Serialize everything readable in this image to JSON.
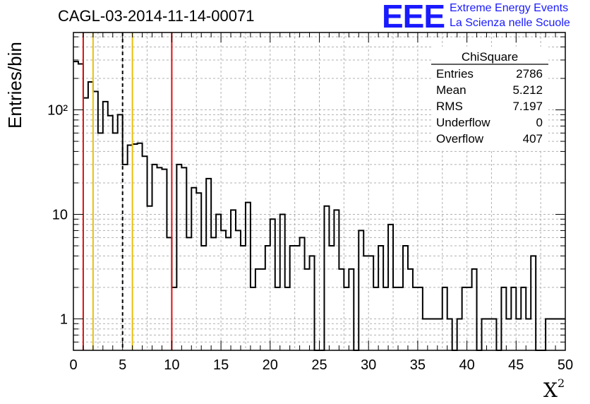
{
  "header": {
    "title": "CAGL-03-2014-11-14-00071",
    "logo_text": "EEE",
    "logo_line1": "Extreme Energy Events",
    "logo_line2": "La Scienza nelle Scuole"
  },
  "chart_data": {
    "type": "histogram",
    "title": "CAGL-03-2014-11-14-00071",
    "xlabel": "X",
    "xlabel_sup": "2",
    "ylabel": "Entries/bin",
    "xlim": [
      0,
      50
    ],
    "ylim": [
      0.5,
      550
    ],
    "y_scale": "log",
    "grid": true,
    "bin_width": 0.5,
    "x_ticks": [
      "0",
      "5",
      "10",
      "15",
      "20",
      "25",
      "30",
      "35",
      "40",
      "45",
      "50"
    ],
    "x_tick_values": [
      0,
      5,
      10,
      15,
      20,
      25,
      30,
      35,
      40,
      45,
      50
    ],
    "y_ticks": [
      "1",
      "10",
      "10²"
    ],
    "y_tick_values": [
      1,
      10,
      100
    ],
    "values": [
      290,
      275,
      130,
      185,
      150,
      60,
      120,
      88,
      60,
      90,
      30,
      46,
      47,
      48,
      36,
      12,
      30,
      28,
      27,
      6,
      2,
      30,
      28,
      6,
      18,
      16,
      5,
      22,
      6,
      10,
      7,
      6,
      11,
      7,
      5,
      13,
      2,
      3,
      3,
      5,
      9,
      2,
      10,
      2,
      5,
      5,
      6,
      3,
      4,
      0.5,
      0.5,
      12,
      5,
      11,
      3,
      2,
      3,
      0.5,
      7,
      4,
      4,
      2,
      5,
      2,
      8,
      2,
      2,
      5,
      3,
      2,
      2,
      1,
      1,
      1,
      1,
      2,
      1,
      0.5,
      1,
      2,
      2,
      3,
      0.5,
      1,
      1,
      1,
      0.5,
      2,
      1,
      2,
      1,
      2,
      1,
      4,
      0.5,
      0.5,
      1,
      1,
      1,
      1
    ],
    "vertical_lines": [
      {
        "x": 1,
        "color": "#dd1111",
        "style": "solid"
      },
      {
        "x": 2,
        "color": "#e8c010",
        "style": "solid"
      },
      {
        "x": 5,
        "color": "#000000",
        "style": "dashed"
      },
      {
        "x": 6,
        "color": "#e8c010",
        "style": "solid"
      },
      {
        "x": 10,
        "color": "#dd1111",
        "style": "solid"
      }
    ],
    "stats_box": {
      "title": "ChiSquare",
      "rows": [
        {
          "label": "Entries",
          "value": "2786"
        },
        {
          "label": "Mean",
          "value": "5.212"
        },
        {
          "label": "RMS",
          "value": "7.197"
        },
        {
          "label": "Underflow",
          "value": "0"
        },
        {
          "label": "Overflow",
          "value": "407"
        }
      ]
    }
  }
}
